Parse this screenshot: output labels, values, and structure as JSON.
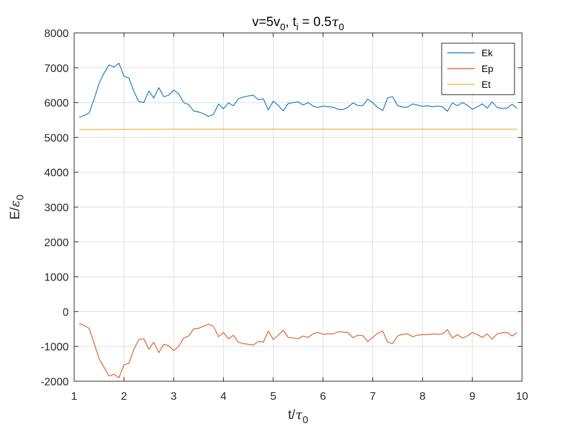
{
  "chart_data": {
    "type": "line",
    "title": {
      "main": "v=5v",
      "sub1": "0",
      "mid": ", t",
      "sub2": "i",
      "mid2": " = 0.5",
      "tau": "τ",
      "sub3": "0"
    },
    "xlabel": {
      "main": "t/",
      "tau": "τ",
      "sub": "0"
    },
    "ylabel": {
      "main": "E/",
      "eps": "ε",
      "sub": "0"
    },
    "xlim": [
      1,
      10
    ],
    "ylim": [
      -2000,
      8000
    ],
    "xticks": [
      1,
      2,
      3,
      4,
      5,
      6,
      7,
      8,
      9,
      10
    ],
    "yticks": [
      -2000,
      -1000,
      0,
      1000,
      2000,
      3000,
      4000,
      5000,
      6000,
      7000,
      8000
    ],
    "grid": true,
    "legend_position": "top-right",
    "series": [
      {
        "name": "Ek",
        "color": "#0072BD",
        "x": [
          1.1,
          1.2,
          1.3,
          1.4,
          1.5,
          1.6,
          1.7,
          1.8,
          1.9,
          2.0,
          2.1,
          2.2,
          2.3,
          2.4,
          2.5,
          2.6,
          2.7,
          2.8,
          2.9,
          3.0,
          3.1,
          3.2,
          3.3,
          3.4,
          3.5,
          3.6,
          3.7,
          3.8,
          3.9,
          4.0,
          4.1,
          4.2,
          4.3,
          4.4,
          4.5,
          4.6,
          4.7,
          4.8,
          4.9,
          5.0,
          5.1,
          5.2,
          5.3,
          5.4,
          5.5,
          5.6,
          5.7,
          5.8,
          5.9,
          6.0,
          6.1,
          6.2,
          6.3,
          6.4,
          6.5,
          6.6,
          6.7,
          6.8,
          6.9,
          7.0,
          7.1,
          7.2,
          7.3,
          7.4,
          7.5,
          7.6,
          7.7,
          7.8,
          7.9,
          8.0,
          8.1,
          8.2,
          8.3,
          8.4,
          8.5,
          8.6,
          8.7,
          8.8,
          8.9,
          9.0,
          9.1,
          9.2,
          9.3,
          9.4,
          9.5,
          9.6,
          9.7,
          9.8,
          9.9
        ],
        "y": [
          5580,
          5630,
          5700,
          6100,
          6550,
          6850,
          7080,
          7020,
          7130,
          6760,
          6700,
          6320,
          6030,
          6000,
          6330,
          6130,
          6430,
          6170,
          6210,
          6360,
          6250,
          6000,
          5940,
          5760,
          5730,
          5680,
          5600,
          5660,
          5960,
          5820,
          5990,
          5910,
          6110,
          6160,
          6190,
          6210,
          6080,
          6110,
          5790,
          6040,
          5920,
          5760,
          5970,
          6000,
          6020,
          5930,
          6000,
          5900,
          5860,
          5900,
          5880,
          5870,
          5810,
          5800,
          5860,
          5990,
          5920,
          5910,
          6100,
          5990,
          5860,
          5770,
          6140,
          6170,
          5910,
          5870,
          5870,
          5960,
          5930,
          5890,
          5910,
          5880,
          5900,
          5880,
          5750,
          5990,
          5910,
          6000,
          5930,
          5810,
          5880,
          5960,
          5840,
          6020,
          5860,
          5830,
          5840,
          5950,
          5830
        ]
      },
      {
        "name": "Ep",
        "color": "#D95319",
        "x": [
          1.1,
          1.2,
          1.3,
          1.4,
          1.5,
          1.6,
          1.7,
          1.8,
          1.9,
          2.0,
          2.1,
          2.2,
          2.3,
          2.4,
          2.5,
          2.6,
          2.7,
          2.8,
          2.9,
          3.0,
          3.1,
          3.2,
          3.3,
          3.4,
          3.5,
          3.6,
          3.7,
          3.8,
          3.9,
          4.0,
          4.1,
          4.2,
          4.3,
          4.4,
          4.5,
          4.6,
          4.7,
          4.8,
          4.9,
          5.0,
          5.1,
          5.2,
          5.3,
          5.4,
          5.5,
          5.6,
          5.7,
          5.8,
          5.9,
          6.0,
          6.1,
          6.2,
          6.3,
          6.4,
          6.5,
          6.6,
          6.7,
          6.8,
          6.9,
          7.0,
          7.1,
          7.2,
          7.3,
          7.4,
          7.5,
          7.6,
          7.7,
          7.8,
          7.9,
          8.0,
          8.1,
          8.2,
          8.3,
          8.4,
          8.5,
          8.6,
          8.7,
          8.8,
          8.9,
          9.0,
          9.1,
          9.2,
          9.3,
          9.4,
          9.5,
          9.6,
          9.7,
          9.8,
          9.9
        ],
        "y": [
          -340,
          -400,
          -480,
          -900,
          -1350,
          -1600,
          -1850,
          -1800,
          -1900,
          -1530,
          -1480,
          -1080,
          -800,
          -780,
          -1080,
          -880,
          -1180,
          -940,
          -980,
          -1120,
          -1000,
          -760,
          -700,
          -500,
          -480,
          -420,
          -360,
          -420,
          -720,
          -600,
          -780,
          -680,
          -880,
          -920,
          -940,
          -960,
          -860,
          -880,
          -560,
          -800,
          -680,
          -540,
          -740,
          -760,
          -780,
          -700,
          -740,
          -640,
          -600,
          -650,
          -640,
          -640,
          -580,
          -580,
          -600,
          -750,
          -680,
          -690,
          -860,
          -740,
          -620,
          -560,
          -880,
          -920,
          -700,
          -650,
          -640,
          -720,
          -680,
          -660,
          -660,
          -640,
          -650,
          -640,
          -520,
          -760,
          -660,
          -760,
          -700,
          -600,
          -660,
          -740,
          -640,
          -790,
          -640,
          -610,
          -600,
          -700,
          -610
        ]
      },
      {
        "name": "Et",
        "color": "#EDB120",
        "x": [
          1.1,
          1.5,
          2.0,
          2.5,
          3.0,
          3.5,
          4.0,
          4.5,
          5.0,
          5.5,
          6.0,
          6.5,
          7.0,
          7.5,
          8.0,
          8.5,
          9.0,
          9.5,
          9.9
        ],
        "y": [
          5225,
          5228,
          5232,
          5236,
          5238,
          5238,
          5238,
          5238,
          5238,
          5238,
          5238,
          5238,
          5238,
          5238,
          5238,
          5238,
          5238,
          5238,
          5238
        ]
      }
    ]
  }
}
